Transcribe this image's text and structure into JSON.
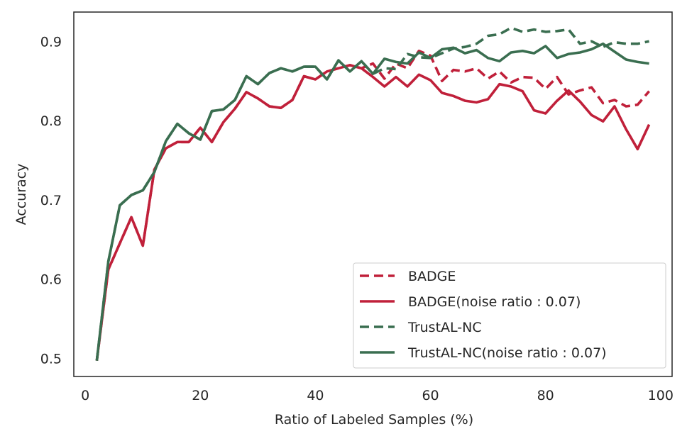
{
  "chart_data": {
    "type": "line",
    "title": "",
    "xlabel": "Ratio of Labeled Samples (%)",
    "ylabel": "Accuracy",
    "xlim": [
      -2,
      102
    ],
    "ylim": [
      0.477,
      0.937
    ],
    "xticks": [
      0,
      20,
      40,
      60,
      80,
      100
    ],
    "yticks": [
      0.5,
      0.6,
      0.7,
      0.8,
      0.9
    ],
    "xtick_labels": [
      "0",
      "20",
      "40",
      "60",
      "80",
      "100"
    ],
    "ytick_labels": [
      "0.5",
      "0.6",
      "0.7",
      "0.8",
      "0.9"
    ],
    "grid": false,
    "legend_position": "lower-right",
    "x": [
      2,
      4,
      6,
      8,
      10,
      12,
      14,
      16,
      18,
      20,
      22,
      24,
      26,
      28,
      30,
      32,
      34,
      36,
      38,
      40,
      42,
      44,
      46,
      48,
      50,
      52,
      54,
      56,
      58,
      60,
      62,
      64,
      66,
      68,
      70,
      72,
      74,
      76,
      78,
      80,
      82,
      84,
      86,
      88,
      90,
      92,
      94,
      96,
      98
    ],
    "series": [
      {
        "name": "BADGE",
        "color": "#c0203a",
        "dash": "dashed",
        "values": [
          0.497,
          0.612,
          0.645,
          0.678,
          0.642,
          0.738,
          0.765,
          0.773,
          0.773,
          0.791,
          0.773,
          0.798,
          0.815,
          0.836,
          0.828,
          0.818,
          0.816,
          0.826,
          0.856,
          0.852,
          0.862,
          0.866,
          0.87,
          0.866,
          0.872,
          0.853,
          0.872,
          0.866,
          0.888,
          0.882,
          0.85,
          0.864,
          0.862,
          0.866,
          0.853,
          0.862,
          0.848,
          0.855,
          0.854,
          0.84,
          0.855,
          0.833,
          0.838,
          0.842,
          0.822,
          0.826,
          0.818,
          0.82,
          0.837
        ]
      },
      {
        "name": "BADGE(noise ratio : 0.07)",
        "color": "#c0203a",
        "dash": "solid",
        "values": [
          0.497,
          0.612,
          0.645,
          0.678,
          0.642,
          0.738,
          0.765,
          0.773,
          0.773,
          0.791,
          0.773,
          0.798,
          0.815,
          0.836,
          0.828,
          0.818,
          0.816,
          0.826,
          0.856,
          0.852,
          0.862,
          0.866,
          0.87,
          0.866,
          0.855,
          0.843,
          0.855,
          0.843,
          0.858,
          0.851,
          0.835,
          0.831,
          0.825,
          0.823,
          0.827,
          0.846,
          0.843,
          0.837,
          0.813,
          0.809,
          0.825,
          0.838,
          0.824,
          0.807,
          0.799,
          0.818,
          0.789,
          0.764,
          0.795
        ]
      },
      {
        "name": "TrustAL-NC",
        "color": "#3a6e50",
        "dash": "dashed",
        "values": [
          0.497,
          0.622,
          0.693,
          0.706,
          0.712,
          0.735,
          0.774,
          0.796,
          0.784,
          0.776,
          0.812,
          0.814,
          0.826,
          0.856,
          0.846,
          0.86,
          0.866,
          0.862,
          0.868,
          0.868,
          0.852,
          0.876,
          0.862,
          0.875,
          0.859,
          0.866,
          0.865,
          0.884,
          0.88,
          0.879,
          0.885,
          0.891,
          0.893,
          0.897,
          0.907,
          0.909,
          0.917,
          0.912,
          0.915,
          0.912,
          0.913,
          0.915,
          0.897,
          0.9,
          0.893,
          0.899,
          0.897,
          0.897,
          0.9
        ]
      },
      {
        "name": "TrustAL-NC(noise ratio : 0.07)",
        "color": "#3a6e50",
        "dash": "solid",
        "values": [
          0.497,
          0.622,
          0.693,
          0.706,
          0.712,
          0.735,
          0.774,
          0.796,
          0.784,
          0.776,
          0.812,
          0.814,
          0.826,
          0.856,
          0.846,
          0.86,
          0.866,
          0.862,
          0.868,
          0.868,
          0.852,
          0.876,
          0.862,
          0.875,
          0.859,
          0.878,
          0.874,
          0.872,
          0.886,
          0.879,
          0.89,
          0.892,
          0.885,
          0.889,
          0.879,
          0.875,
          0.886,
          0.888,
          0.885,
          0.894,
          0.879,
          0.884,
          0.886,
          0.89,
          0.897,
          0.887,
          0.877,
          0.874,
          0.872
        ]
      }
    ]
  }
}
